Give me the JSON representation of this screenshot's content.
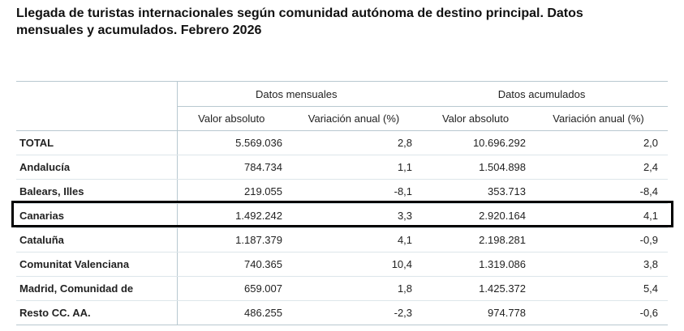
{
  "title": "Llegada de turistas internacionales según comunidad autónoma de destino principal. Datos mensuales y acumulados. Febrero 2026",
  "table": {
    "group_headers": [
      "Datos mensuales",
      "Datos acumulados"
    ],
    "column_headers": [
      "Valor absoluto",
      "Variación anual (%)",
      "Valor absoluto",
      "Variación anual (%)"
    ],
    "rows": [
      [
        "TOTAL",
        "5.569.036",
        "2,8",
        "10.696.292",
        "2,0"
      ],
      [
        "Andalucía",
        "784.734",
        "1,1",
        "1.504.898",
        "2,4"
      ],
      [
        "Balears, Illes",
        "219.055",
        "-8,1",
        "353.713",
        "-8,4"
      ],
      [
        "Canarias",
        "1.492.242",
        "3,3",
        "2.920.164",
        "4,1"
      ],
      [
        "Cataluña",
        "1.187.379",
        "4,1",
        "2.198.281",
        "-0,9"
      ],
      [
        "Comunitat Valenciana",
        "740.365",
        "10,4",
        "1.319.086",
        "3,8"
      ],
      [
        "Madrid, Comunidad de",
        "659.007",
        "1,8",
        "1.425.372",
        "5,4"
      ],
      [
        "Resto CC. AA.",
        "486.255",
        "-2,3",
        "974.778",
        "-0,6"
      ]
    ]
  }
}
